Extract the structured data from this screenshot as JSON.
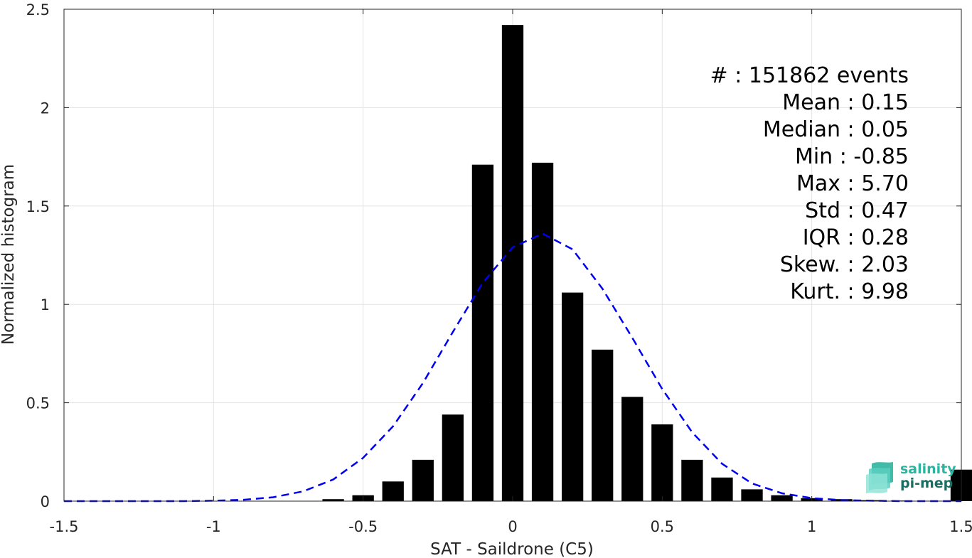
{
  "chart_data": {
    "type": "bar",
    "xlabel": "SAT - Saildrone (C5)",
    "ylabel": "Normalized histogram",
    "xlim": [
      -1.5,
      1.5
    ],
    "ylim": [
      0,
      2.5
    ],
    "xticks": [
      -1.5,
      -1,
      -0.5,
      0,
      0.5,
      1,
      1.5
    ],
    "xtick_labels": [
      "-1.5",
      "-1",
      "-0.5",
      "0",
      "0.5",
      "1",
      "1.5"
    ],
    "yticks": [
      0,
      0.5,
      1,
      1.5,
      2,
      2.5
    ],
    "ytick_labels": [
      "0",
      "0.5",
      "1",
      "1.5",
      "2",
      "2.5"
    ],
    "grid": true,
    "bars": {
      "color": "#000000",
      "x": [
        -0.6,
        -0.5,
        -0.4,
        -0.3,
        -0.2,
        -0.1,
        0.0,
        0.1,
        0.2,
        0.3,
        0.4,
        0.5,
        0.6,
        0.7,
        0.8,
        0.9,
        1.0,
        1.1,
        1.2,
        1.3,
        1.4,
        1.5
      ],
      "values": [
        0.01,
        0.03,
        0.1,
        0.21,
        0.44,
        1.71,
        2.42,
        1.72,
        1.06,
        0.77,
        0.53,
        0.39,
        0.21,
        0.12,
        0.06,
        0.03,
        0.015,
        0.01,
        0.005,
        0.003,
        0.002,
        0.16
      ]
    },
    "fit_curve": {
      "color": "#0000ee",
      "style": "dashed",
      "x": [
        -1.5,
        -1.4,
        -1.3,
        -1.2,
        -1.1,
        -1.0,
        -0.9,
        -0.8,
        -0.7,
        -0.6,
        -0.5,
        -0.4,
        -0.3,
        -0.2,
        -0.1,
        0.0,
        0.1,
        0.2,
        0.3,
        0.4,
        0.5,
        0.6,
        0.7,
        0.8,
        0.9,
        1.0,
        1.1,
        1.2,
        1.3,
        1.4,
        1.5
      ],
      "y": [
        0.0,
        0.0,
        0.0,
        0.0,
        0.0,
        0.002,
        0.007,
        0.02,
        0.05,
        0.11,
        0.22,
        0.38,
        0.6,
        0.86,
        1.11,
        1.29,
        1.36,
        1.28,
        1.08,
        0.83,
        0.57,
        0.35,
        0.19,
        0.09,
        0.04,
        0.015,
        0.005,
        0.002,
        0.0,
        0.0,
        0.0
      ]
    }
  },
  "stats": [
    {
      "label": "#  ",
      "value": ": 151862 events"
    },
    {
      "label": "Mean ",
      "value": ": 0.15"
    },
    {
      "label": "Median ",
      "value": ": 0.05"
    },
    {
      "label": "Min ",
      "value": ": -0.85"
    },
    {
      "label": "Max ",
      "value": ": 5.70"
    },
    {
      "label": "Std ",
      "value": ": 0.47"
    },
    {
      "label": "IQR ",
      "value": ": 0.28"
    },
    {
      "label": "Skew. ",
      "value": ": 2.03"
    },
    {
      "label": "Kurt. ",
      "value": ": 9.98"
    }
  ],
  "logo": {
    "line1": "salinity",
    "line2": "pi-mep",
    "color1": "#2bb5a0",
    "color2": "#1a6e63"
  }
}
